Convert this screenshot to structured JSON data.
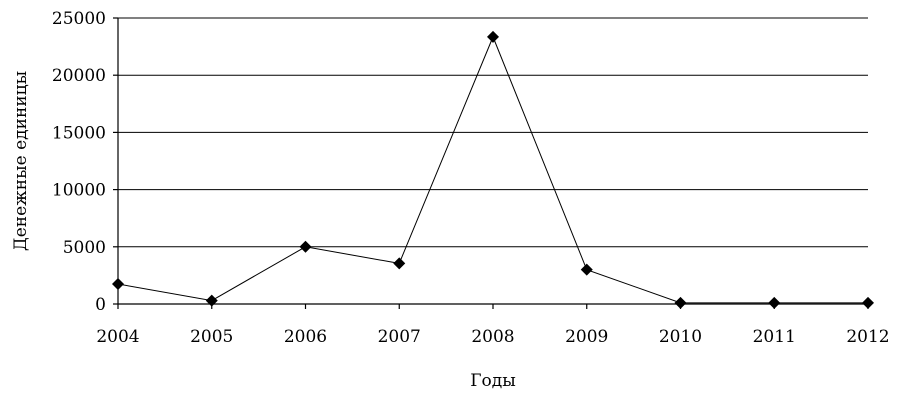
{
  "chart_data": {
    "type": "line",
    "title": "",
    "xlabel": "Годы",
    "ylabel": "Денежные единицы",
    "x": [
      2004,
      2005,
      2006,
      2007,
      2008,
      2009,
      2010,
      2011,
      2012
    ],
    "x_tick_labels": [
      "2004",
      "2005",
      "2006",
      "2007",
      "2008",
      "2009",
      "2010",
      "2011",
      "2012"
    ],
    "y_tick_values": [
      0,
      5000,
      10000,
      15000,
      20000,
      25000
    ],
    "y_tick_labels": [
      "0",
      "5000",
      "10000",
      "15000",
      "20000",
      "25000"
    ],
    "ylim": [
      0,
      25000
    ],
    "grid": true,
    "legend": "none",
    "series": [
      {
        "values": [
          1750,
          300,
          5000,
          3550,
          23350,
          3000,
          100,
          100,
          100
        ],
        "color": "#000000",
        "marker": "diamond"
      }
    ]
  }
}
